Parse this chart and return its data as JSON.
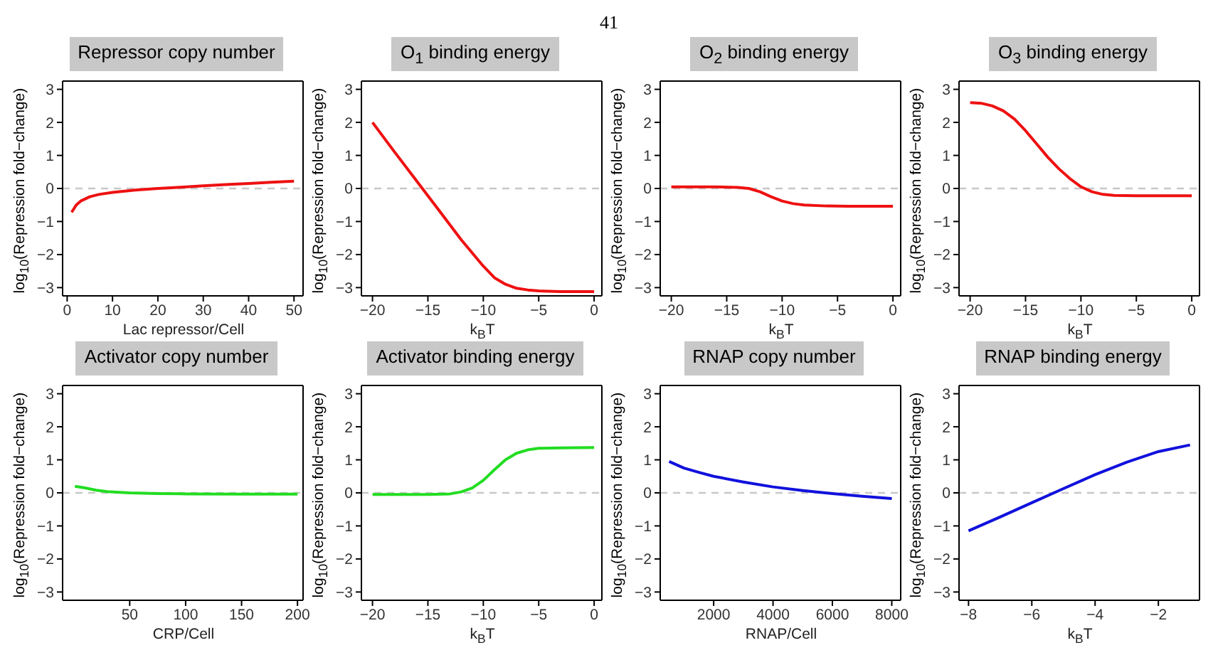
{
  "chart_data": [
    {
      "type": "line",
      "title": "Repressor copy number",
      "xlabel": "Lac repressor/Cell",
      "ylabel": "log$_{10}$(Repression fold−change)",
      "annotations": [
        "41"
      ],
      "color": "#ee1111",
      "x": [
        1,
        2,
        3,
        5,
        7,
        10,
        15,
        20,
        25,
        30,
        35,
        40,
        45,
        50
      ],
      "values": [
        -0.72,
        -0.5,
        -0.38,
        -0.25,
        -0.18,
        -0.12,
        -0.05,
        0.0,
        0.04,
        0.08,
        0.12,
        0.15,
        0.19,
        0.22
      ],
      "xlim": [
        -1,
        52
      ],
      "xticks": [
        0,
        10,
        20,
        30,
        40,
        50
      ],
      "ylim": [
        -3.25,
        3.25
      ],
      "yticks": [
        -3,
        -2,
        -1,
        0,
        1,
        2,
        3
      ],
      "ref_lines": [
        {
          "axis": "y",
          "value": 0,
          "color": "#c8c8c8",
          "line_style": "dashed"
        }
      ]
    },
    {
      "type": "line",
      "title": "O$_{1}$ binding energy",
      "xlabel": "k$_{B}$T",
      "ylabel": "log$_{10}$(Repression fold−change)",
      "color": "#ee1111",
      "x": [
        -20,
        -18,
        -16,
        -14,
        -12,
        -10,
        -9,
        -8,
        -7,
        -6,
        -5,
        -3,
        0
      ],
      "values": [
        2.0,
        1.1,
        0.22,
        -0.66,
        -1.55,
        -2.35,
        -2.7,
        -2.9,
        -3.02,
        -3.07,
        -3.1,
        -3.12,
        -3.12
      ],
      "xlim": [
        -21,
        0.7
      ],
      "xticks": [
        -20,
        -15,
        -10,
        -5,
        0
      ],
      "ylim": [
        -3.25,
        3.25
      ],
      "yticks": [
        -3,
        -2,
        -1,
        0,
        1,
        2,
        3
      ],
      "ref_lines": [
        {
          "axis": "y",
          "value": 0,
          "color": "#c8c8c8",
          "line_style": "dashed"
        }
      ]
    },
    {
      "type": "line",
      "title": "O$_{2}$ binding energy",
      "xlabel": "k$_{B}$T",
      "ylabel": "log$_{10}$(Repression fold−change)",
      "color": "#ee1111",
      "x": [
        -20,
        -16,
        -14,
        -13,
        -12,
        -11,
        -10,
        -9,
        -8,
        -6,
        -4,
        0
      ],
      "values": [
        0.05,
        0.05,
        0.03,
        0.0,
        -0.1,
        -0.25,
        -0.38,
        -0.46,
        -0.5,
        -0.53,
        -0.54,
        -0.54
      ],
      "xlim": [
        -21,
        0.7
      ],
      "xticks": [
        -20,
        -15,
        -10,
        -5,
        0
      ],
      "ylim": [
        -3.25,
        3.25
      ],
      "yticks": [
        -3,
        -2,
        -1,
        0,
        1,
        2,
        3
      ],
      "ref_lines": [
        {
          "axis": "y",
          "value": 0,
          "color": "#c8c8c8",
          "line_style": "dashed"
        }
      ]
    },
    {
      "type": "line",
      "title": "O$_{3}$ binding energy",
      "xlabel": "k$_{B}$T",
      "ylabel": "log$_{10}$(Repression fold−change)",
      "color": "#ee1111",
      "x": [
        -20,
        -19,
        -18,
        -17,
        -16,
        -15,
        -14,
        -13,
        -12,
        -11,
        -10,
        -9,
        -8,
        -7,
        -5,
        0
      ],
      "values": [
        2.6,
        2.58,
        2.5,
        2.35,
        2.1,
        1.75,
        1.35,
        0.95,
        0.6,
        0.3,
        0.05,
        -0.1,
        -0.18,
        -0.21,
        -0.22,
        -0.22
      ],
      "xlim": [
        -21,
        0.7
      ],
      "xticks": [
        -20,
        -15,
        -10,
        -5,
        0
      ],
      "ylim": [
        -3.25,
        3.25
      ],
      "yticks": [
        -3,
        -2,
        -1,
        0,
        1,
        2,
        3
      ],
      "ref_lines": [
        {
          "axis": "y",
          "value": 0,
          "color": "#c8c8c8",
          "line_style": "dashed"
        }
      ]
    },
    {
      "type": "line",
      "title": "Activator copy number",
      "xlabel": "CRP/Cell",
      "ylabel": "log$_{10}$(Repression fold−change)",
      "color": "#22dd22",
      "x": [
        1,
        10,
        20,
        30,
        50,
        75,
        100,
        150,
        200
      ],
      "values": [
        0.2,
        0.15,
        0.08,
        0.04,
        0.0,
        -0.02,
        -0.03,
        -0.04,
        -0.04
      ],
      "xlim": [
        -10,
        205
      ],
      "xticks": [
        50,
        100,
        150,
        200
      ],
      "ylim": [
        -3.25,
        3.25
      ],
      "yticks": [
        -3,
        -2,
        -1,
        0,
        1,
        2,
        3
      ],
      "ref_lines": [
        {
          "axis": "y",
          "value": 0,
          "color": "#c8c8c8",
          "line_style": "dashed"
        }
      ]
    },
    {
      "type": "line",
      "title": "Activator binding energy",
      "xlabel": "k$_{B}$T",
      "ylabel": "log$_{10}$(Repression fold−change)",
      "color": "#22dd22",
      "x": [
        -20,
        -15,
        -13,
        -12,
        -11,
        -10,
        -9,
        -8,
        -7,
        -6,
        -5,
        -3,
        0
      ],
      "values": [
        -0.05,
        -0.05,
        -0.03,
        0.03,
        0.15,
        0.38,
        0.7,
        1.0,
        1.2,
        1.3,
        1.35,
        1.36,
        1.37
      ],
      "xlim": [
        -21,
        0.7
      ],
      "xticks": [
        -20,
        -15,
        -10,
        -5,
        0
      ],
      "ylim": [
        -3.25,
        3.25
      ],
      "yticks": [
        -3,
        -2,
        -1,
        0,
        1,
        2,
        3
      ],
      "ref_lines": [
        {
          "axis": "y",
          "value": 0,
          "color": "#c8c8c8",
          "line_style": "dashed"
        }
      ]
    },
    {
      "type": "line",
      "title": "RNAP copy number",
      "xlabel": "RNAP/Cell",
      "ylabel": "log$_{10}$(Repression fold−change)",
      "color": "#1111dd",
      "x": [
        500,
        1000,
        1500,
        2000,
        3000,
        4000,
        5000,
        6000,
        7000,
        8000
      ],
      "values": [
        0.95,
        0.75,
        0.62,
        0.5,
        0.33,
        0.18,
        0.07,
        -0.02,
        -0.1,
        -0.17
      ],
      "xlim": [
        200,
        8300
      ],
      "xticks": [
        2000,
        4000,
        6000,
        8000
      ],
      "ylim": [
        -3.25,
        3.25
      ],
      "yticks": [
        -3,
        -2,
        -1,
        0,
        1,
        2,
        3
      ],
      "ref_lines": [
        {
          "axis": "y",
          "value": 0,
          "color": "#c8c8c8",
          "line_style": "dashed"
        }
      ]
    },
    {
      "type": "line",
      "title": "RNAP binding energy",
      "xlabel": "k$_{B}$T",
      "ylabel": "log$_{10}$(Repression fold−change)",
      "color": "#1111dd",
      "x": [
        -8,
        -7,
        -6,
        -5,
        -4,
        -3,
        -2,
        -1
      ],
      "values": [
        -1.15,
        -0.73,
        -0.3,
        0.13,
        0.55,
        0.93,
        1.25,
        1.45
      ],
      "xlim": [
        -8.3,
        -0.7
      ],
      "xticks": [
        -8,
        -6,
        -4,
        -2
      ],
      "ylim": [
        -3.25,
        3.25
      ],
      "yticks": [
        -3,
        -2,
        -1,
        0,
        1,
        2,
        3
      ],
      "ref_lines": [
        {
          "axis": "y",
          "value": 0,
          "color": "#c8c8c8",
          "line_style": "dashed"
        }
      ]
    }
  ]
}
